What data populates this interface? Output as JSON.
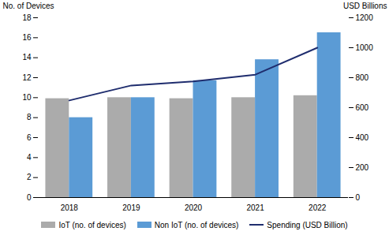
{
  "chart_data": {
    "type": "bar",
    "categories": [
      "2018",
      "2019",
      "2020",
      "2021",
      "2022"
    ],
    "series": [
      {
        "name": "IoT (no. of devices)",
        "color": "#ababab",
        "values": [
          9.9,
          10.0,
          9.9,
          10.0,
          10.2
        ]
      },
      {
        "name": "Non IoT (no. of devices)",
        "color": "#5b9bd5",
        "values": [
          8.0,
          10.0,
          11.7,
          13.8,
          16.5
        ]
      },
      {
        "name": "Spending (USD Billion)",
        "color": "#1f2d6e",
        "type": "line",
        "axis": "y2",
        "values": [
          648,
          748,
          775,
          820,
          1000
        ]
      }
    ],
    "ylabel": "No. of Devices",
    "y2label": "USD Billions",
    "ylim": [
      0,
      18
    ],
    "yticks": [
      0,
      2,
      4,
      6,
      8,
      10,
      12,
      14,
      16,
      18
    ],
    "y2lim": [
      0,
      1200
    ],
    "y2ticks": [
      0,
      200,
      400,
      600,
      800,
      1000,
      1200
    ],
    "grid": false,
    "legend": "bottom"
  }
}
